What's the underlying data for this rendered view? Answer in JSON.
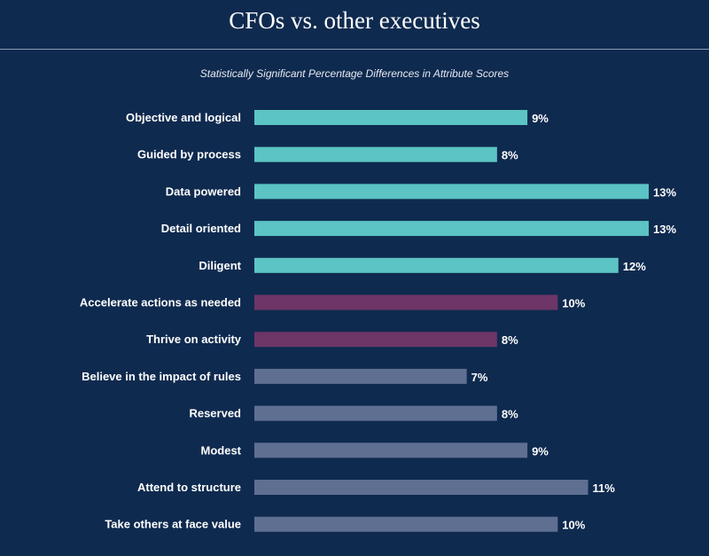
{
  "header": {
    "title": "CFOs vs. other executives",
    "subtitle": "Statistically Significant Percentage Differences in Attribute Scores"
  },
  "colors": {
    "teal": "#5cc4c4",
    "purple": "#6e3567",
    "slate": "#5f6f92"
  },
  "chart_data": {
    "type": "bar",
    "orientation": "horizontal",
    "title": "CFOs vs. other executives",
    "subtitle": "Statistically Significant Percentage Differences in Attribute Scores",
    "xlabel": "",
    "ylabel": "",
    "xlim": [
      0,
      13
    ],
    "grid": false,
    "value_suffix": "%",
    "categories": [
      "Objective and logical",
      "Guided by process",
      "Data powered",
      "Detail oriented",
      "Diligent",
      "Accelerate actions  as needed",
      "Thrive on activity",
      "Believe in the impact of rules",
      "Reserved",
      "Modest",
      "Attend to structure",
      "Take others at face value"
    ],
    "values": [
      9,
      8,
      13,
      13,
      12,
      10,
      8,
      7,
      8,
      9,
      11,
      10
    ],
    "labels": [
      "9%",
      "8%",
      "13%",
      "13%",
      "12%",
      "10%",
      "8%",
      "7%",
      "8%",
      "9%",
      "11%",
      "10%"
    ],
    "groups": [
      "teal",
      "teal",
      "teal",
      "teal",
      "teal",
      "purple",
      "purple",
      "slate",
      "slate",
      "slate",
      "slate",
      "slate"
    ]
  }
}
